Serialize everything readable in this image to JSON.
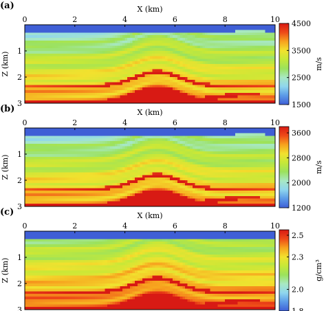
{
  "chart_data": [
    {
      "type": "heatmap",
      "panel_label": "(a)",
      "xlabel": "X (km)",
      "ylabel": "Z (km)",
      "xlim": [
        0,
        10
      ],
      "ylim": [
        0,
        3
      ],
      "x_ticks": [
        "0",
        "2",
        "4",
        "6",
        "8",
        "10"
      ],
      "y_ticks": [
        "1",
        "2",
        "3"
      ],
      "colorbar": {
        "unit": "m/s",
        "range": [
          1500,
          4500
        ],
        "ticks": [
          "1500",
          "2500",
          "3500",
          "4500"
        ]
      },
      "colorscale": [
        "#3f5fd6",
        "#5b9ae8",
        "#8fd6ee",
        "#a8e8c4",
        "#9be25c",
        "#c6e838",
        "#f2e12e",
        "#f7a21e",
        "#ee4a18",
        "#d81a14"
      ],
      "background_value": 1500
    },
    {
      "type": "heatmap",
      "panel_label": "(b)",
      "xlabel": "X (km)",
      "ylabel": "Z (km)",
      "xlim": [
        0,
        10
      ],
      "ylim": [
        0,
        3
      ],
      "x_ticks": [
        "0",
        "2",
        "4",
        "6",
        "8",
        "10"
      ],
      "y_ticks": [
        "1",
        "2",
        "3"
      ],
      "colorbar": {
        "unit": "m/s",
        "range": [
          1200,
          3800
        ],
        "ticks": [
          "1200",
          "2000",
          "2800",
          "3600"
        ]
      },
      "colorscale": [
        "#3f5fd6",
        "#5b9ae8",
        "#8fd6ee",
        "#a8e8c4",
        "#9be25c",
        "#c6e838",
        "#f2e12e",
        "#f7a21e",
        "#ee4a18",
        "#d81a14"
      ],
      "background_value": 1500
    },
    {
      "type": "heatmap",
      "panel_label": "(c)",
      "xlabel": "X (km)",
      "ylabel": "Z (km)",
      "xlim": [
        0,
        10
      ],
      "ylim": [
        0,
        3
      ],
      "x_ticks": [
        "0",
        "2",
        "4",
        "6",
        "8",
        "10"
      ],
      "y_ticks": [
        "1",
        "2",
        "3"
      ],
      "colorbar": {
        "unit": "g/cm³",
        "range": [
          1.8,
          2.55
        ],
        "ticks": [
          "1.8",
          "2.0",
          "2.3",
          "2.5"
        ]
      },
      "colorscale": [
        "#3f5fd6",
        "#5b9ae8",
        "#8fd6ee",
        "#a8e8c4",
        "#9be25c",
        "#c6e838",
        "#f2e12e",
        "#f7a21e",
        "#ee4a18",
        "#d81a14"
      ],
      "background_value": 1.8
    }
  ]
}
